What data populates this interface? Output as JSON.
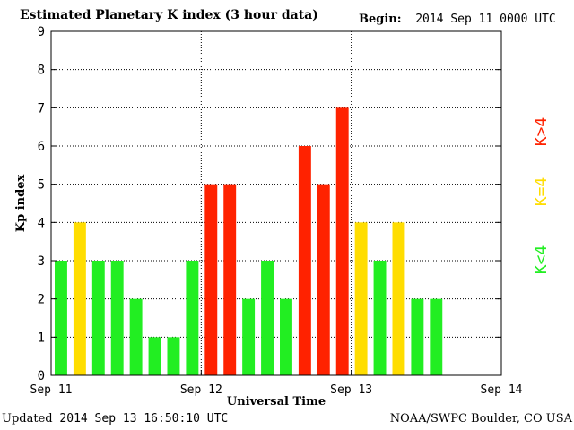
{
  "header": {
    "title": "Estimated Planetary K index (3 hour data)",
    "begin_label": "Begin:",
    "begin_value": "2014 Sep 11 0000 UTC"
  },
  "footer": {
    "updated_label": "Updated",
    "updated_value": "2014 Sep 13 16:50:10 UTC",
    "credit": "NOAA/SWPC Boulder, CO USA"
  },
  "chart_data": {
    "type": "bar",
    "title": "Estimated Planetary K index (3 hour data)",
    "xlabel": "Universal Time",
    "ylabel": "Kp index",
    "ylim": [
      0,
      9
    ],
    "yticks": [
      0,
      1,
      2,
      3,
      4,
      5,
      6,
      7,
      8,
      9
    ],
    "xticks": [
      "Sep 11",
      "Sep 12",
      "Sep 13",
      "Sep 14"
    ],
    "slots_per_day": 8,
    "total_slots": 24,
    "values": [
      3,
      4,
      3,
      3,
      2,
      1,
      1,
      3,
      5,
      5,
      2,
      3,
      2,
      6,
      5,
      7,
      4,
      3,
      4,
      2,
      2
    ],
    "grid": true,
    "legend": [
      {
        "label": "K<4",
        "color": "#22ee22"
      },
      {
        "label": "K=4",
        "color": "#ffdd00"
      },
      {
        "label": "K>4",
        "color": "#ff2200"
      }
    ],
    "colors": {
      "low": "#22ee22",
      "mid": "#ffdd00",
      "high": "#ff2200"
    }
  }
}
